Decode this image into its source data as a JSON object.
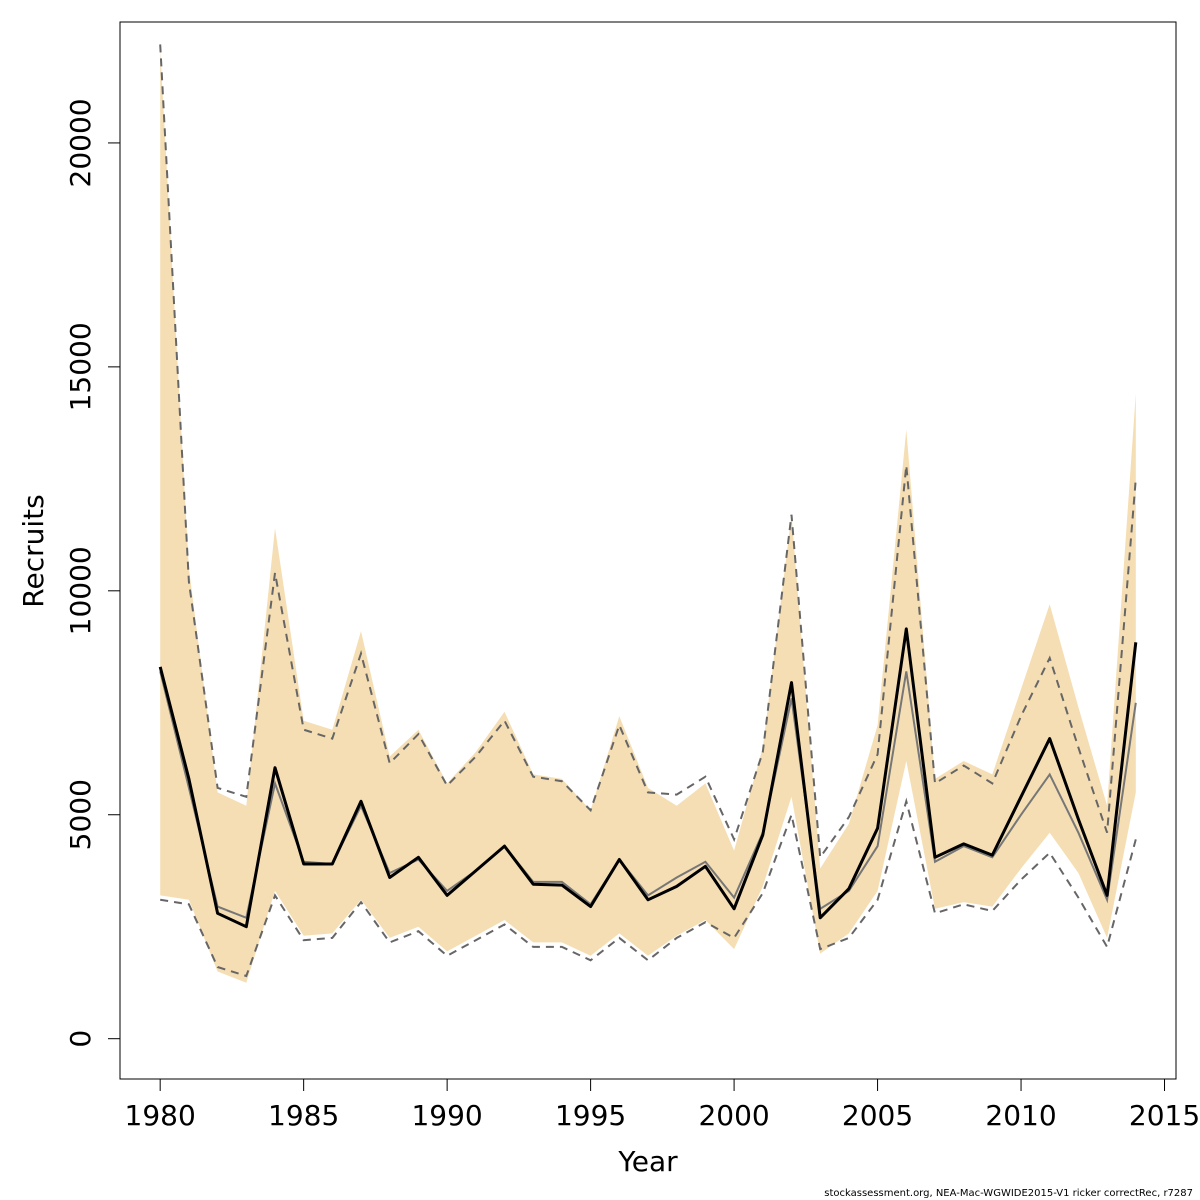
{
  "chart_data": {
    "type": "line",
    "xlabel": "Year",
    "ylabel": "Recruits",
    "xlim": [
      1978.6,
      2015.4
    ],
    "ylim": [
      -900,
      22700
    ],
    "xticks": [
      1980,
      1985,
      1990,
      1995,
      2000,
      2005,
      2010,
      2015
    ],
    "yticks": [
      0,
      5000,
      10000,
      15000,
      20000
    ],
    "grid": false,
    "legend": "none",
    "x": [
      1980,
      1981,
      1982,
      1983,
      1984,
      1985,
      1986,
      1987,
      1988,
      1989,
      1990,
      1991,
      1992,
      1993,
      1994,
      1995,
      1996,
      1997,
      1998,
      1999,
      2000,
      2001,
      2002,
      2003,
      2004,
      2005,
      2006,
      2007,
      2008,
      2009,
      2010,
      2011,
      2012,
      2013,
      2014
    ],
    "series": [
      {
        "role": "confidence-band",
        "color": "#f5deb3",
        "lower": [
          3200,
          3100,
          1500,
          1250,
          3300,
          2300,
          2350,
          3100,
          2250,
          2500,
          1950,
          2300,
          2650,
          2150,
          2150,
          1850,
          2350,
          1850,
          2300,
          2650,
          2000,
          3400,
          5400,
          1900,
          2350,
          3300,
          6200,
          2900,
          3050,
          2950,
          3800,
          4600,
          3700,
          2250,
          5500
        ],
        "upper": [
          22100,
          10500,
          5500,
          5200,
          11400,
          7100,
          6900,
          9100,
          6300,
          6900,
          5700,
          6400,
          7300,
          5900,
          5800,
          5100,
          7200,
          5600,
          5200,
          5700,
          4200,
          6500,
          11700,
          3800,
          4800,
          7000,
          13600,
          5800,
          6200,
          5900,
          7800,
          9700,
          7400,
          5200,
          14400
        ]
      },
      {
        "role": "estimate",
        "color": "#000000",
        "values": [
          8300,
          5800,
          2800,
          2500,
          6050,
          3900,
          3900,
          5300,
          3600,
          4050,
          3200,
          3750,
          4300,
          3450,
          3430,
          2950,
          4000,
          3100,
          3400,
          3850,
          2900,
          4550,
          7950,
          2700,
          3350,
          4700,
          9150,
          4050,
          4350,
          4100,
          5400,
          6700,
          4900,
          3200,
          8850
        ]
      },
      {
        "role": "alternative-estimate",
        "color": "#777777",
        "values": [
          8200,
          5600,
          2950,
          2700,
          5700,
          3950,
          3900,
          5200,
          3700,
          4000,
          3300,
          3750,
          4300,
          3500,
          3500,
          3000,
          4000,
          3200,
          3600,
          3950,
          3150,
          4600,
          7600,
          2900,
          3300,
          4300,
          8200,
          3950,
          4300,
          4050,
          5000,
          5900,
          4600,
          3100,
          7500
        ]
      },
      {
        "role": "alternative-ci",
        "color": "#666666",
        "dash": true,
        "lower": [
          3100,
          3000,
          1600,
          1400,
          3200,
          2200,
          2250,
          3050,
          2150,
          2400,
          1850,
          2200,
          2550,
          2050,
          2050,
          1750,
          2250,
          1750,
          2250,
          2600,
          2250,
          3250,
          5000,
          2000,
          2250,
          3100,
          5300,
          2800,
          3000,
          2850,
          3550,
          4150,
          3150,
          2050,
          4450
        ],
        "upper": [
          22200,
          10200,
          5600,
          5400,
          10400,
          6900,
          6700,
          8600,
          6150,
          6800,
          5650,
          6300,
          7100,
          5850,
          5750,
          5100,
          7000,
          5500,
          5450,
          5850,
          4450,
          6400,
          11700,
          4050,
          4950,
          6350,
          12800,
          5700,
          6100,
          5700,
          7200,
          8500,
          6500,
          4600,
          12500
        ]
      }
    ]
  },
  "footer": {
    "text": "stockassessment.org, NEA-Mac-WGWIDE2015-V1 ricker correctRec, r7287"
  }
}
